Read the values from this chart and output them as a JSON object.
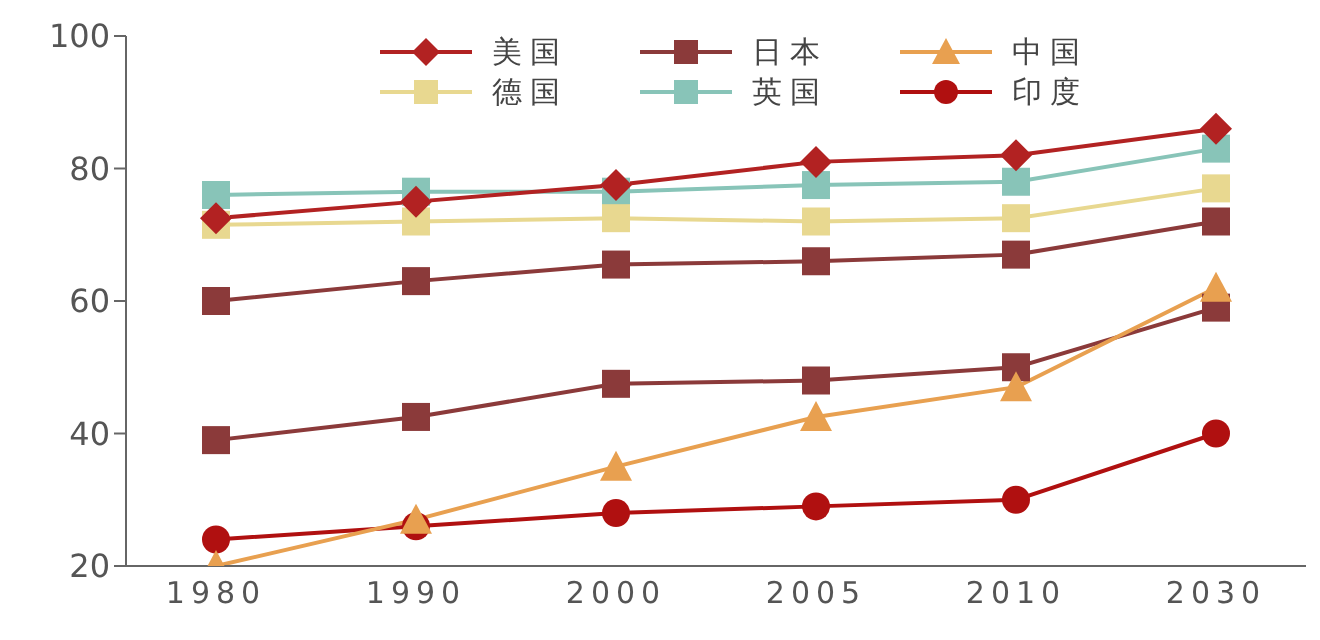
{
  "chart_data": {
    "type": "line",
    "categories": [
      "1980",
      "1990",
      "2000",
      "2005",
      "2010",
      "2030"
    ],
    "series": [
      {
        "name": "美国",
        "color": "#b22222",
        "marker": "diamond",
        "values": [
          72.5,
          75,
          77.5,
          81,
          82,
          86
        ]
      },
      {
        "name": "日本",
        "color": "#8b3a3a",
        "marker": "square",
        "values": [
          60,
          63,
          65.5,
          66,
          67,
          72
        ]
      },
      {
        "name": "中国",
        "color": "#e8a050",
        "marker": "triangle",
        "values": [
          20,
          27,
          35,
          42.5,
          47,
          62
        ]
      },
      {
        "name": "德国",
        "color": "#e8d890",
        "marker": "square",
        "values": [
          71.5,
          72,
          72.5,
          72,
          72.5,
          77
        ]
      },
      {
        "name": "英国",
        "color": "#88c4b8",
        "marker": "square",
        "values": [
          76,
          76.5,
          76.5,
          77.5,
          78,
          83
        ]
      },
      {
        "name": "印度",
        "color": "#b01010",
        "marker": "circle",
        "values": [
          24,
          26,
          28,
          29,
          30,
          40
        ]
      },
      {
        "color": "#8b3a3a",
        "marker": "square",
        "values": [
          39,
          42.5,
          47.5,
          48,
          50,
          59
        ]
      }
    ],
    "ylim": [
      20,
      100
    ],
    "yticks": [
      20,
      40,
      60,
      80,
      100
    ],
    "grid": false,
    "legend": "top"
  }
}
